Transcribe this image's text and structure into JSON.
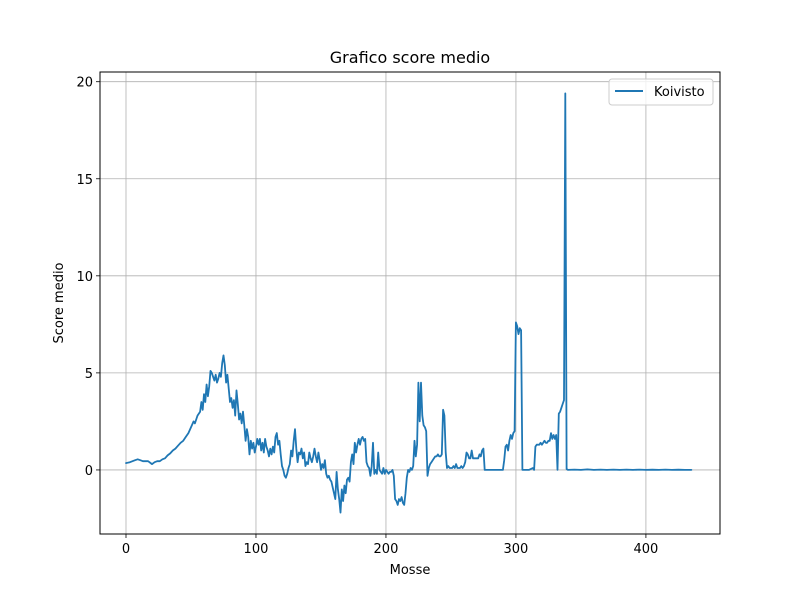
{
  "chart_data": {
    "type": "line",
    "title": "Grafico score medio",
    "xlabel": "Mosse",
    "ylabel": "Score medio",
    "xlim": [
      -20,
      457
    ],
    "ylim": [
      -3.3,
      20.5
    ],
    "xticks": [
      0,
      100,
      200,
      300,
      400
    ],
    "yticks": [
      0,
      5,
      10,
      15,
      20
    ],
    "grid": true,
    "legend_position": "top-right",
    "line_color": "#1f77b4",
    "series": [
      {
        "name": "Koivisto",
        "points": [
          [
            0,
            0.35
          ],
          [
            3,
            0.4
          ],
          [
            5,
            0.45
          ],
          [
            7,
            0.5
          ],
          [
            9,
            0.55
          ],
          [
            11,
            0.5
          ],
          [
            13,
            0.45
          ],
          [
            15,
            0.45
          ],
          [
            17,
            0.45
          ],
          [
            19,
            0.35
          ],
          [
            20,
            0.3
          ],
          [
            22,
            0.4
          ],
          [
            24,
            0.45
          ],
          [
            26,
            0.45
          ],
          [
            28,
            0.55
          ],
          [
            30,
            0.6
          ],
          [
            32,
            0.75
          ],
          [
            34,
            0.85
          ],
          [
            36,
            1.0
          ],
          [
            38,
            1.1
          ],
          [
            40,
            1.25
          ],
          [
            42,
            1.4
          ],
          [
            44,
            1.5
          ],
          [
            46,
            1.7
          ],
          [
            48,
            1.9
          ],
          [
            50,
            2.2
          ],
          [
            52,
            2.5
          ],
          [
            53,
            2.4
          ],
          [
            55,
            2.8
          ],
          [
            57,
            3.0
          ],
          [
            58,
            3.5
          ],
          [
            59,
            3.1
          ],
          [
            60,
            3.9
          ],
          [
            61,
            3.5
          ],
          [
            62,
            4.4
          ],
          [
            63,
            3.8
          ],
          [
            64,
            4.3
          ],
          [
            65,
            5.1
          ],
          [
            66,
            5.0
          ],
          [
            67,
            4.8
          ],
          [
            68,
            4.6
          ],
          [
            69,
            4.9
          ],
          [
            70,
            4.5
          ],
          [
            71,
            4.7
          ],
          [
            72,
            5.0
          ],
          [
            73,
            4.8
          ],
          [
            74,
            5.5
          ],
          [
            75,
            5.9
          ],
          [
            76,
            5.4
          ],
          [
            77,
            4.5
          ],
          [
            78,
            4.9
          ],
          [
            79,
            4.2
          ],
          [
            80,
            3.5
          ],
          [
            81,
            3.7
          ],
          [
            82,
            3.2
          ],
          [
            83,
            3.6
          ],
          [
            84,
            2.8
          ],
          [
            85,
            4.1
          ],
          [
            86,
            3.4
          ],
          [
            87,
            2.6
          ],
          [
            88,
            2.9
          ],
          [
            89,
            2.4
          ],
          [
            90,
            3.0
          ],
          [
            91,
            2.3
          ],
          [
            92,
            1.5
          ],
          [
            93,
            2.1
          ],
          [
            94,
            1.7
          ],
          [
            95,
            0.8
          ],
          [
            96,
            1.5
          ],
          [
            97,
            1.1
          ],
          [
            98,
            1.4
          ],
          [
            99,
            0.9
          ],
          [
            100,
            1.2
          ],
          [
            101,
            1.6
          ],
          [
            102,
            1.3
          ],
          [
            103,
            1.6
          ],
          [
            104,
            1.0
          ],
          [
            105,
            1.4
          ],
          [
            106,
            0.9
          ],
          [
            107,
            1.6
          ],
          [
            108,
            1.2
          ],
          [
            109,
            1.0
          ],
          [
            110,
            0.7
          ],
          [
            111,
            1.1
          ],
          [
            112,
            0.8
          ],
          [
            113,
            1.2
          ],
          [
            114,
            0.9
          ],
          [
            115,
            1.7
          ],
          [
            116,
            1.9
          ],
          [
            117,
            1.3
          ],
          [
            118,
            1.5
          ],
          [
            119,
            0.8
          ],
          [
            120,
            0.2
          ],
          [
            121,
            0.0
          ],
          [
            122,
            -0.3
          ],
          [
            123,
            -0.4
          ],
          [
            124,
            -0.2
          ],
          [
            125,
            0.1
          ],
          [
            126,
            0.3
          ],
          [
            127,
            1.0
          ],
          [
            128,
            0.7
          ],
          [
            129,
            1.5
          ],
          [
            130,
            2.1
          ],
          [
            131,
            1.1
          ],
          [
            132,
            0.4
          ],
          [
            133,
            0.9
          ],
          [
            134,
            0.8
          ],
          [
            135,
            1.1
          ],
          [
            136,
            0.6
          ],
          [
            137,
            0.9
          ],
          [
            138,
            0.2
          ],
          [
            139,
            0.4
          ],
          [
            140,
            0.3
          ],
          [
            141,
            0.9
          ],
          [
            142,
            0.6
          ],
          [
            143,
            0.4
          ],
          [
            144,
            0.7
          ],
          [
            145,
            1.1
          ],
          [
            146,
            0.7
          ],
          [
            147,
            0.4
          ],
          [
            148,
            0.9
          ],
          [
            149,
            0.5
          ],
          [
            150,
            0.0
          ],
          [
            151,
            0.3
          ],
          [
            152,
            0.1
          ],
          [
            153,
            0.5
          ],
          [
            154,
            -0.2
          ],
          [
            155,
            -0.4
          ],
          [
            156,
            -0.3
          ],
          [
            157,
            -0.5
          ],
          [
            158,
            -0.6
          ],
          [
            159,
            -0.9
          ],
          [
            160,
            -1.2
          ],
          [
            161,
            -1.5
          ],
          [
            162,
            -0.1
          ],
          [
            163,
            -1.0
          ],
          [
            164,
            -1.5
          ],
          [
            165,
            -2.2
          ],
          [
            166,
            -1.0
          ],
          [
            167,
            -1.6
          ],
          [
            168,
            -0.8
          ],
          [
            169,
            -1.2
          ],
          [
            170,
            -0.5
          ],
          [
            171,
            -0.4
          ],
          [
            172,
            -0.6
          ],
          [
            173,
            0.4
          ],
          [
            174,
            0.8
          ],
          [
            175,
            0.3
          ],
          [
            176,
            1.4
          ],
          [
            177,
            0.9
          ],
          [
            178,
            1.3
          ],
          [
            179,
            1.6
          ],
          [
            180,
            1.3
          ],
          [
            181,
            1.6
          ],
          [
            182,
            1.7
          ],
          [
            183,
            1.5
          ],
          [
            184,
            1.6
          ],
          [
            185,
            0.4
          ],
          [
            186,
            0.2
          ],
          [
            187,
            0.1
          ],
          [
            188,
            -0.3
          ],
          [
            189,
            0.2
          ],
          [
            190,
            1.4
          ],
          [
            191,
            -0.2
          ],
          [
            192,
            0.0
          ],
          [
            193,
            -0.2
          ],
          [
            194,
            0.9
          ],
          [
            195,
            0.0
          ],
          [
            196,
            -0.1
          ],
          [
            197,
            -0.2
          ],
          [
            198,
            0.1
          ],
          [
            199,
            -0.2
          ],
          [
            200,
            0.0
          ],
          [
            201,
            -0.1
          ],
          [
            202,
            -0.2
          ],
          [
            203,
            -0.1
          ],
          [
            204,
            -0.1
          ],
          [
            205,
            0.0
          ],
          [
            206,
            -0.3
          ],
          [
            207,
            -1.5
          ],
          [
            208,
            -1.6
          ],
          [
            209,
            -1.8
          ],
          [
            210,
            -1.5
          ],
          [
            211,
            -1.6
          ],
          [
            212,
            -1.4
          ],
          [
            213,
            -1.7
          ],
          [
            214,
            -1.8
          ],
          [
            215,
            -1.2
          ],
          [
            216,
            -0.4
          ],
          [
            217,
            0.0
          ],
          [
            218,
            -0.1
          ],
          [
            219,
            0.1
          ],
          [
            220,
            0.0
          ],
          [
            221,
            0.2
          ],
          [
            222,
            1.5
          ],
          [
            223,
            0.7
          ],
          [
            224,
            1.3
          ],
          [
            225,
            4.5
          ],
          [
            226,
            2.5
          ],
          [
            227,
            4.5
          ],
          [
            228,
            2.8
          ],
          [
            229,
            2.3
          ],
          [
            230,
            2.2
          ],
          [
            231,
            2.0
          ],
          [
            232,
            -0.3
          ],
          [
            233,
            0.1
          ],
          [
            234,
            0.3
          ],
          [
            235,
            0.4
          ],
          [
            236,
            0.5
          ],
          [
            237,
            0.6
          ],
          [
            238,
            0.7
          ],
          [
            239,
            0.7
          ],
          [
            240,
            0.8
          ],
          [
            241,
            0.7
          ],
          [
            242,
            0.7
          ],
          [
            243,
            0.8
          ],
          [
            244,
            3.1
          ],
          [
            245,
            2.8
          ],
          [
            246,
            0.9
          ],
          [
            247,
            0.1
          ],
          [
            248,
            0.2
          ],
          [
            249,
            0.1
          ],
          [
            250,
            0.1
          ],
          [
            251,
            0.1
          ],
          [
            252,
            0.2
          ],
          [
            253,
            0.1
          ],
          [
            254,
            0.3
          ],
          [
            255,
            0.1
          ],
          [
            256,
            0.1
          ],
          [
            257,
            0.1
          ],
          [
            258,
            0.2
          ],
          [
            259,
            0.1
          ],
          [
            260,
            0.2
          ],
          [
            261,
            0.4
          ],
          [
            262,
            0.9
          ],
          [
            263,
            0.8
          ],
          [
            264,
            0.6
          ],
          [
            265,
            0.6
          ],
          [
            266,
            1.0
          ],
          [
            267,
            0.6
          ],
          [
            268,
            0.6
          ],
          [
            269,
            0.6
          ],
          [
            270,
            0.6
          ],
          [
            271,
            0.6
          ],
          [
            272,
            0.8
          ],
          [
            273,
            0.7
          ],
          [
            274,
            1.0
          ],
          [
            275,
            1.1
          ],
          [
            276,
            0.0
          ],
          [
            278,
            0.0
          ],
          [
            280,
            0.0
          ],
          [
            282,
            0.0
          ],
          [
            284,
            0.0
          ],
          [
            286,
            0.0
          ],
          [
            288,
            0.0
          ],
          [
            290,
            0.0
          ],
          [
            291,
            0.5
          ],
          [
            292,
            1.2
          ],
          [
            293,
            1.3
          ],
          [
            294,
            1.0
          ],
          [
            295,
            1.5
          ],
          [
            296,
            1.8
          ],
          [
            297,
            1.6
          ],
          [
            298,
            1.9
          ],
          [
            299,
            2.0
          ],
          [
            300,
            7.6
          ],
          [
            301,
            7.4
          ],
          [
            302,
            7.0
          ],
          [
            303,
            7.3
          ],
          [
            304,
            7.2
          ],
          [
            305,
            0.0
          ],
          [
            307,
            0.0
          ],
          [
            310,
            0.0
          ],
          [
            313,
            0.1
          ],
          [
            314,
            0.0
          ],
          [
            315,
            1.2
          ],
          [
            316,
            1.3
          ],
          [
            317,
            1.3
          ],
          [
            318,
            1.3
          ],
          [
            319,
            1.4
          ],
          [
            320,
            1.3
          ],
          [
            321,
            1.4
          ],
          [
            322,
            1.5
          ],
          [
            323,
            1.4
          ],
          [
            324,
            1.4
          ],
          [
            325,
            1.5
          ],
          [
            326,
            1.5
          ],
          [
            327,
            1.9
          ],
          [
            328,
            1.6
          ],
          [
            329,
            1.8
          ],
          [
            330,
            1.6
          ],
          [
            331,
            1.8
          ],
          [
            332,
            0.0
          ],
          [
            333,
            2.9
          ],
          [
            334,
            3.0
          ],
          [
            335,
            3.2
          ],
          [
            336,
            3.4
          ],
          [
            337,
            3.6
          ],
          [
            338,
            19.4
          ],
          [
            339,
            0.05
          ],
          [
            340,
            0.0
          ],
          [
            345,
            0.02
          ],
          [
            350,
            0.0
          ],
          [
            355,
            0.03
          ],
          [
            360,
            0.0
          ],
          [
            365,
            0.02
          ],
          [
            370,
            0.0
          ],
          [
            375,
            0.02
          ],
          [
            380,
            0.0
          ],
          [
            385,
            0.02
          ],
          [
            390,
            0.0
          ],
          [
            395,
            0.02
          ],
          [
            400,
            0.0
          ],
          [
            405,
            0.01
          ],
          [
            410,
            0.0
          ],
          [
            415,
            0.02
          ],
          [
            420,
            0.0
          ],
          [
            425,
            0.01
          ],
          [
            430,
            0.0
          ],
          [
            435,
            0.0
          ]
        ]
      }
    ]
  }
}
